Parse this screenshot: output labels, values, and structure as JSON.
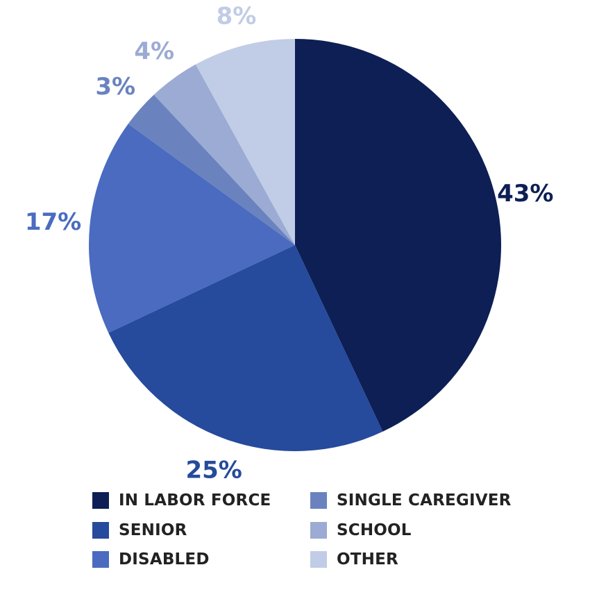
{
  "chart_data": {
    "type": "pie",
    "title": "",
    "start": "12 o'clock",
    "direction": "clockwise",
    "slices": [
      {
        "name": "IN LABOR FORCE",
        "value": 43,
        "label": "43%",
        "color": "#0d1f54"
      },
      {
        "name": "SENIOR",
        "value": 25,
        "label": "25%",
        "color": "#264a9c"
      },
      {
        "name": "DISABLED",
        "value": 17,
        "label": "17%",
        "color": "#4a6bc0"
      },
      {
        "name": "SINGLE CAREGIVER",
        "value": 3,
        "label": "3%",
        "color": "#6a83bf"
      },
      {
        "name": "SCHOOL",
        "value": 4,
        "label": "4%",
        "color": "#9cabd3"
      },
      {
        "name": "OTHER",
        "value": 8,
        "label": "8%",
        "color": "#c1cce6"
      }
    ],
    "legend_position": "bottom"
  },
  "legend": {
    "items": [
      {
        "label": "IN LABOR FORCE",
        "color": "#0d1f54"
      },
      {
        "label": "SINGLE CAREGIVER",
        "color": "#6a83bf"
      },
      {
        "label": "SENIOR",
        "color": "#264a9c"
      },
      {
        "label": "SCHOOL",
        "color": "#9cabd3"
      },
      {
        "label": "DISABLED",
        "color": "#4a6bc0"
      },
      {
        "label": "OTHER",
        "color": "#c1cce6"
      }
    ]
  }
}
